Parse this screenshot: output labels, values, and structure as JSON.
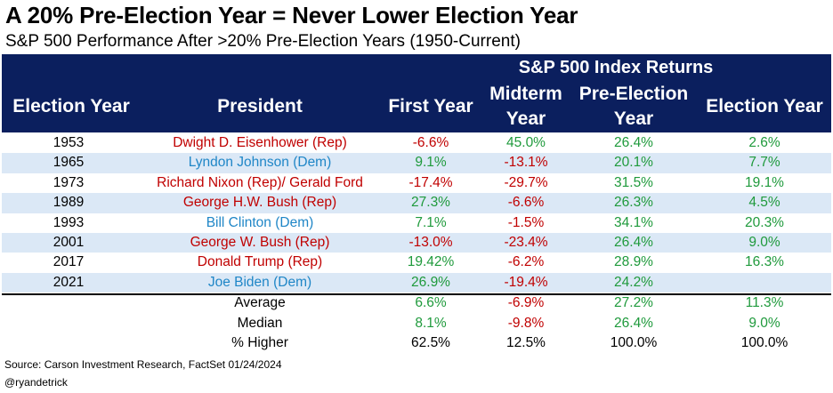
{
  "title": "A 20% Pre-Election Year = Never Lower Election Year",
  "subtitle": "S&P 500 Performance After >20% Pre-Election Years (1950-Current)",
  "colors": {
    "header_bg": "#0b1f5e",
    "row_alt_bg": "#dbe8f6",
    "positive": "#1f9a3c",
    "negative": "#c00000",
    "republican": "#c00000",
    "democrat": "#1f86c7"
  },
  "chart_data": {
    "type": "table",
    "group_header": "S&P 500 Index Returns",
    "columns": {
      "election_year": "Election Year",
      "president": "President",
      "first_year": "First Year",
      "midterm_line1": "Midterm",
      "midterm_line2": "Year",
      "pre_election_line1": "Pre-Election",
      "pre_election_line2": "Year",
      "election_year_return": "Election Year"
    },
    "rows": [
      {
        "year": "1953",
        "president": "Dwight D. Eisenhower (Rep)",
        "party": "rep",
        "first": "-6.6%",
        "first_sign": "neg",
        "midterm": "45.0%",
        "midterm_sign": "pos",
        "pre": "26.4%",
        "pre_sign": "pos",
        "election": "2.6%",
        "election_sign": "pos"
      },
      {
        "year": "1965",
        "president": "Lyndon Johnson (Dem)",
        "party": "dem",
        "first": "9.1%",
        "first_sign": "pos",
        "midterm": "-13.1%",
        "midterm_sign": "neg",
        "pre": "20.1%",
        "pre_sign": "pos",
        "election": "7.7%",
        "election_sign": "pos"
      },
      {
        "year": "1973",
        "president": "Richard Nixon (Rep)/ Gerald Ford",
        "party": "rep",
        "first": "-17.4%",
        "first_sign": "neg",
        "midterm": "-29.7%",
        "midterm_sign": "neg",
        "pre": "31.5%",
        "pre_sign": "pos",
        "election": "19.1%",
        "election_sign": "pos"
      },
      {
        "year": "1989",
        "president": "George H.W. Bush (Rep)",
        "party": "rep",
        "first": "27.3%",
        "first_sign": "pos",
        "midterm": "-6.6%",
        "midterm_sign": "neg",
        "pre": "26.3%",
        "pre_sign": "pos",
        "election": "4.5%",
        "election_sign": "pos"
      },
      {
        "year": "1993",
        "president": "Bill Clinton (Dem)",
        "party": "dem",
        "first": "7.1%",
        "first_sign": "pos",
        "midterm": "-1.5%",
        "midterm_sign": "neg",
        "pre": "34.1%",
        "pre_sign": "pos",
        "election": "20.3%",
        "election_sign": "pos"
      },
      {
        "year": "2001",
        "president": "George W. Bush (Rep)",
        "party": "rep",
        "first": "-13.0%",
        "first_sign": "neg",
        "midterm": "-23.4%",
        "midterm_sign": "neg",
        "pre": "26.4%",
        "pre_sign": "pos",
        "election": "9.0%",
        "election_sign": "pos"
      },
      {
        "year": "2017",
        "president": "Donald Trump (Rep)",
        "party": "rep",
        "first": "19.42%",
        "first_sign": "pos",
        "midterm": "-6.2%",
        "midterm_sign": "neg",
        "pre": "28.9%",
        "pre_sign": "pos",
        "election": "16.3%",
        "election_sign": "pos"
      },
      {
        "year": "2021",
        "president": "Joe Biden (Dem)",
        "party": "dem",
        "first": "26.9%",
        "first_sign": "pos",
        "midterm": "-19.4%",
        "midterm_sign": "neg",
        "pre": "24.2%",
        "pre_sign": "pos",
        "election": "",
        "election_sign": "pos"
      }
    ],
    "summary": [
      {
        "label": "Average",
        "first": "6.6%",
        "first_sign": "pos",
        "midterm": "-6.9%",
        "midterm_sign": "neg",
        "pre": "27.2%",
        "pre_sign": "pos",
        "election": "11.3%",
        "election_sign": "pos"
      },
      {
        "label": "Median",
        "first": "8.1%",
        "first_sign": "pos",
        "midterm": "-9.8%",
        "midterm_sign": "neg",
        "pre": "26.4%",
        "pre_sign": "pos",
        "election": "9.0%",
        "election_sign": "pos"
      },
      {
        "label": "% Higher",
        "first": "62.5%",
        "first_sign": "neutral",
        "midterm": "12.5%",
        "midterm_sign": "neutral",
        "pre": "100.0%",
        "pre_sign": "neutral",
        "election": "100.0%",
        "election_sign": "neutral"
      }
    ]
  },
  "footer": {
    "source": "Source: Carson Investment Research, FactSet 01/24/2024",
    "handle": "@ryandetrick"
  }
}
